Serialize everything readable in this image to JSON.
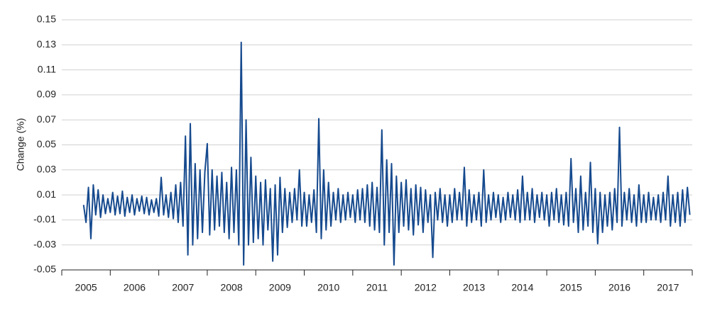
{
  "chart_data": {
    "type": "line",
    "y_label": "Change (%)",
    "categories": [
      "2005",
      "2006",
      "2007",
      "2008",
      "2009",
      "2010",
      "2011",
      "2012",
      "2013",
      "2014",
      "2015",
      "2016",
      "2017"
    ],
    "xlim": [
      2005,
      2018
    ],
    "xticks": [
      2005,
      2006,
      2007,
      2008,
      2009,
      2010,
      2011,
      2012,
      2013,
      2014,
      2015,
      2016,
      2017,
      2018
    ],
    "ylim": [
      -0.05,
      0.15
    ],
    "yticks": [
      -0.05,
      -0.03,
      -0.01,
      0.01,
      0.03,
      0.05,
      0.07,
      0.09,
      0.11,
      0.13,
      0.15
    ],
    "grid": true,
    "x": [
      2005.45,
      2005.5,
      2005.55,
      2005.6,
      2005.65,
      2005.7,
      2005.75,
      2005.8,
      2005.85,
      2005.9,
      2005.95,
      2006,
      2006.05,
      2006.1,
      2006.15,
      2006.2,
      2006.25,
      2006.3,
      2006.35,
      2006.4,
      2006.45,
      2006.5,
      2006.55,
      2006.6,
      2006.65,
      2006.7,
      2006.75,
      2006.8,
      2006.85,
      2006.9,
      2006.95,
      2007,
      2007.05,
      2007.1,
      2007.15,
      2007.2,
      2007.25,
      2007.3,
      2007.35,
      2007.4,
      2007.45,
      2007.5,
      2007.55,
      2007.6,
      2007.65,
      2007.7,
      2007.75,
      2007.8,
      2007.85,
      2007.9,
      2007.95,
      2008,
      2008.05,
      2008.1,
      2008.15,
      2008.2,
      2008.25,
      2008.3,
      2008.35,
      2008.4,
      2008.45,
      2008.5,
      2008.55,
      2008.6,
      2008.65,
      2008.7,
      2008.75,
      2008.8,
      2008.85,
      2008.9,
      2008.95,
      2009,
      2009.05,
      2009.1,
      2009.15,
      2009.2,
      2009.25,
      2009.3,
      2009.35,
      2009.4,
      2009.45,
      2009.5,
      2009.55,
      2009.6,
      2009.65,
      2009.7,
      2009.75,
      2009.8,
      2009.85,
      2009.9,
      2009.95,
      2010,
      2010.05,
      2010.1,
      2010.15,
      2010.2,
      2010.25,
      2010.3,
      2010.35,
      2010.4,
      2010.45,
      2010.5,
      2010.55,
      2010.6,
      2010.65,
      2010.7,
      2010.75,
      2010.8,
      2010.85,
      2010.9,
      2010.95,
      2011,
      2011.05,
      2011.1,
      2011.15,
      2011.2,
      2011.25,
      2011.3,
      2011.35,
      2011.4,
      2011.45,
      2011.5,
      2011.55,
      2011.6,
      2011.65,
      2011.7,
      2011.75,
      2011.8,
      2011.85,
      2011.9,
      2011.95,
      2012,
      2012.05,
      2012.1,
      2012.15,
      2012.2,
      2012.25,
      2012.3,
      2012.35,
      2012.4,
      2012.45,
      2012.5,
      2012.55,
      2012.6,
      2012.65,
      2012.7,
      2012.75,
      2012.8,
      2012.85,
      2012.9,
      2012.95,
      2013,
      2013.05,
      2013.1,
      2013.15,
      2013.2,
      2013.25,
      2013.3,
      2013.35,
      2013.4,
      2013.45,
      2013.5,
      2013.55,
      2013.6,
      2013.65,
      2013.7,
      2013.75,
      2013.8,
      2013.85,
      2013.9,
      2013.95,
      2014,
      2014.05,
      2014.1,
      2014.15,
      2014.2,
      2014.25,
      2014.3,
      2014.35,
      2014.4,
      2014.45,
      2014.5,
      2014.55,
      2014.6,
      2014.65,
      2014.7,
      2014.75,
      2014.8,
      2014.85,
      2014.9,
      2014.95,
      2015,
      2015.05,
      2015.1,
      2015.15,
      2015.2,
      2015.25,
      2015.3,
      2015.35,
      2015.4,
      2015.45,
      2015.5,
      2015.55,
      2015.6,
      2015.65,
      2015.7,
      2015.75,
      2015.8,
      2015.85,
      2015.9,
      2015.95,
      2016,
      2016.05,
      2016.1,
      2016.15,
      2016.2,
      2016.25,
      2016.3,
      2016.35,
      2016.4,
      2016.45,
      2016.5,
      2016.55,
      2016.6,
      2016.65,
      2016.7,
      2016.75,
      2016.8,
      2016.85,
      2016.9,
      2016.95,
      2017,
      2017.05,
      2017.1,
      2017.15,
      2017.2,
      2017.25,
      2017.3,
      2017.35,
      2017.4,
      2017.45,
      2017.5,
      2017.55,
      2017.6,
      2017.65,
      2017.7,
      2017.75,
      2017.8,
      2017.85,
      2017.9,
      2017.95
    ],
    "series": [
      {
        "color": "#164a8e",
        "values": [
          0.002,
          -0.012,
          0.016,
          -0.025,
          0.018,
          -0.006,
          0.014,
          -0.008,
          0.01,
          -0.005,
          0.007,
          -0.004,
          0.012,
          -0.006,
          0.009,
          -0.005,
          0.013,
          -0.007,
          0.008,
          -0.004,
          0.01,
          -0.006,
          0.007,
          -0.003,
          0.009,
          -0.005,
          0.008,
          -0.006,
          0.006,
          -0.004,
          0.007,
          -0.007,
          0.024,
          -0.006,
          0.01,
          -0.008,
          0.012,
          -0.009,
          0.018,
          -0.012,
          0.02,
          -0.015,
          0.057,
          -0.038,
          0.067,
          -0.03,
          0.035,
          -0.025,
          0.03,
          -0.02,
          0.028,
          0.051,
          -0.022,
          0.03,
          -0.018,
          0.025,
          -0.015,
          0.028,
          -0.02,
          0.02,
          -0.025,
          0.032,
          -0.02,
          0.03,
          -0.03,
          0.132,
          -0.046,
          0.07,
          -0.03,
          0.04,
          -0.028,
          0.025,
          -0.025,
          0.02,
          -0.03,
          0.022,
          -0.018,
          0.015,
          -0.043,
          0.018,
          -0.038,
          0.024,
          -0.02,
          0.015,
          -0.016,
          0.012,
          -0.012,
          0.015,
          -0.01,
          0.03,
          -0.015,
          0.012,
          -0.015,
          0.01,
          -0.012,
          0.014,
          -0.02,
          0.071,
          -0.025,
          0.03,
          -0.018,
          0.02,
          -0.015,
          0.012,
          -0.01,
          0.015,
          -0.012,
          0.01,
          -0.01,
          0.012,
          -0.008,
          0.01,
          -0.012,
          0.014,
          -0.01,
          0.015,
          -0.012,
          0.018,
          -0.015,
          0.02,
          -0.018,
          0.016,
          -0.02,
          0.062,
          -0.03,
          0.038,
          -0.02,
          0.035,
          -0.046,
          0.025,
          -0.02,
          0.02,
          -0.015,
          0.022,
          -0.018,
          0.015,
          -0.022,
          0.018,
          -0.014,
          0.016,
          -0.02,
          0.014,
          -0.012,
          0.01,
          -0.04,
          0.012,
          -0.01,
          0.015,
          -0.012,
          0.01,
          -0.015,
          0.01,
          -0.012,
          0.015,
          -0.01,
          0.012,
          -0.01,
          0.032,
          -0.015,
          0.014,
          -0.012,
          0.01,
          -0.01,
          0.012,
          -0.015,
          0.03,
          -0.012,
          0.01,
          -0.01,
          0.012,
          -0.008,
          0.01,
          -0.012,
          0.008,
          -0.01,
          0.012,
          -0.008,
          0.01,
          -0.01,
          0.014,
          -0.012,
          0.025,
          -0.01,
          0.012,
          -0.01,
          0.015,
          -0.012,
          0.01,
          -0.008,
          0.012,
          -0.01,
          0.01,
          -0.015,
          0.012,
          -0.01,
          0.015,
          -0.012,
          0.01,
          -0.014,
          0.012,
          -0.015,
          0.039,
          -0.012,
          0.015,
          -0.02,
          0.025,
          -0.018,
          0.012,
          -0.015,
          0.036,
          -0.02,
          0.015,
          -0.029,
          0.012,
          -0.02,
          0.01,
          -0.015,
          0.012,
          -0.018,
          0.015,
          -0.012,
          0.064,
          -0.015,
          0.012,
          -0.01,
          0.015,
          -0.012,
          0.01,
          -0.015,
          0.018,
          -0.012,
          0.01,
          -0.012,
          0.012,
          -0.01,
          0.008,
          -0.01,
          0.01,
          -0.012,
          0.012,
          -0.01,
          0.025,
          -0.015,
          0.01,
          -0.012,
          0.012,
          -0.015,
          0.014,
          -0.012,
          0.016,
          -0.006
        ]
      }
    ]
  }
}
